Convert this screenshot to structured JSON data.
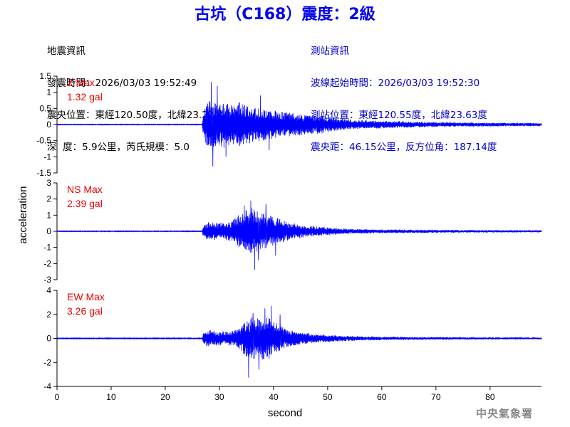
{
  "header": {
    "title": "古坑（C168）震度：2級",
    "left_info": [
      "地震資訊",
      "發震時間：2026/03/03 19:52:49",
      "震央位置：東經120.50度，北緯23.22度",
      "深  度：5.9公里，芮氏規模：5.0"
    ],
    "right_info": [
      "測站資訊",
      "波線起始時間：2026/03/03 19:52:30",
      "測站位置：東經120.55度，北緯23.63度",
      "震央距：46.15公里，反方位角：187.14度"
    ]
  },
  "footer": {
    "agency": "中央氣象署"
  },
  "colors": {
    "trace": "#0000ff",
    "title": "#0000ee",
    "station_info": "#0000cc",
    "max_label": "#ee0000"
  },
  "chart_data": [
    {
      "type": "line",
      "channel": "Z",
      "max_label": "Z Max",
      "max_value": "1.32 gal",
      "peak": 1.32,
      "ylim": [
        -1.5,
        1.5
      ],
      "yticks": [
        1.5,
        1,
        0.5,
        0,
        -0.5,
        -1,
        -1.5
      ],
      "ytick_labels": [
        "1.5",
        "1",
        "0.5",
        "0",
        "-0.5",
        "-1",
        "-1.5"
      ],
      "envelope": [
        [
          0,
          0.01
        ],
        [
          26.8,
          0.01
        ],
        [
          27,
          0.45
        ],
        [
          28,
          0.85
        ],
        [
          29,
          0.8
        ],
        [
          30,
          0.7
        ],
        [
          31,
          0.75
        ],
        [
          32,
          0.65
        ],
        [
          33,
          0.7
        ],
        [
          34,
          0.7
        ],
        [
          35,
          0.6
        ],
        [
          36,
          0.6
        ],
        [
          37,
          0.55
        ],
        [
          38,
          0.55
        ],
        [
          40,
          0.45
        ],
        [
          42,
          0.4
        ],
        [
          45,
          0.35
        ],
        [
          48,
          0.3
        ],
        [
          50,
          0.25
        ],
        [
          55,
          0.15
        ],
        [
          60,
          0.12
        ],
        [
          65,
          0.1
        ],
        [
          70,
          0.08
        ],
        [
          80,
          0.06
        ],
        [
          89.5,
          0.05
        ]
      ],
      "peaks": [
        [
          28.5,
          1.32
        ],
        [
          28.8,
          -1.3
        ],
        [
          29.6,
          1.2
        ],
        [
          31.2,
          -1.0
        ],
        [
          37.6,
          0.9
        ],
        [
          39.2,
          -0.8
        ]
      ]
    },
    {
      "type": "line",
      "channel": "NS",
      "max_label": "NS Max",
      "max_value": "2.39 gal",
      "peak": 2.39,
      "ylim": [
        -3,
        3
      ],
      "yticks": [
        3,
        2,
        1,
        0,
        -1,
        -2,
        -3
      ],
      "ytick_labels": [
        "3",
        "2",
        "1",
        "0",
        "-1",
        "-2",
        "-3"
      ],
      "envelope": [
        [
          0,
          0.02
        ],
        [
          26.8,
          0.02
        ],
        [
          27,
          0.35
        ],
        [
          28,
          0.6
        ],
        [
          30,
          0.55
        ],
        [
          32,
          0.6
        ],
        [
          33,
          0.9
        ],
        [
          34,
          1.1
        ],
        [
          35,
          1.4
        ],
        [
          36,
          1.5
        ],
        [
          37,
          1.3
        ],
        [
          38,
          1.1
        ],
        [
          39,
          1.0
        ],
        [
          40,
          0.9
        ],
        [
          41,
          0.8
        ],
        [
          43,
          0.55
        ],
        [
          45,
          0.4
        ],
        [
          50,
          0.25
        ],
        [
          55,
          0.15
        ],
        [
          60,
          0.12
        ],
        [
          70,
          0.1
        ],
        [
          80,
          0.08
        ],
        [
          89.5,
          0.07
        ]
      ],
      "peaks": [
        [
          36.5,
          -2.39
        ],
        [
          35.8,
          1.9
        ],
        [
          34.6,
          1.6
        ],
        [
          38.6,
          1.7
        ],
        [
          37.2,
          -1.8
        ],
        [
          40.4,
          -1.5
        ]
      ]
    },
    {
      "type": "line",
      "channel": "EW",
      "max_label": "EW Max",
      "max_value": "3.26 gal",
      "peak": 3.26,
      "ylim": [
        -4,
        4
      ],
      "yticks": [
        4,
        2,
        0,
        -2,
        -4
      ],
      "ytick_labels": [
        "4",
        "2",
        "0",
        "-2",
        "-4"
      ],
      "envelope": [
        [
          0,
          0.03
        ],
        [
          26.8,
          0.03
        ],
        [
          27,
          0.5
        ],
        [
          28,
          0.7
        ],
        [
          30,
          0.6
        ],
        [
          32,
          0.6
        ],
        [
          33,
          0.8
        ],
        [
          34,
          1.1
        ],
        [
          35,
          1.6
        ],
        [
          36,
          1.8
        ],
        [
          37,
          1.7
        ],
        [
          38,
          1.9
        ],
        [
          39,
          1.8
        ],
        [
          40,
          1.5
        ],
        [
          41,
          1.1
        ],
        [
          42,
          0.9
        ],
        [
          44,
          0.6
        ],
        [
          46,
          0.45
        ],
        [
          50,
          0.3
        ],
        [
          55,
          0.2
        ],
        [
          60,
          0.15
        ],
        [
          70,
          0.12
        ],
        [
          80,
          0.1
        ],
        [
          89.5,
          0.09
        ]
      ],
      "peaks": [
        [
          35.4,
          -3.26
        ],
        [
          39.6,
          2.7
        ],
        [
          38.4,
          2.5
        ],
        [
          37.3,
          -2.6
        ],
        [
          41.2,
          2.0
        ],
        [
          36.2,
          2.1
        ]
      ]
    }
  ],
  "x_axis": {
    "label": "second",
    "xlim": [
      0,
      89.5
    ],
    "ticks": [
      0,
      10,
      20,
      30,
      40,
      50,
      60,
      70,
      80
    ],
    "tick_labels": [
      "0",
      "10",
      "20",
      "30",
      "40",
      "50",
      "60",
      "70",
      "80"
    ]
  },
  "y_axis": {
    "label": "acceleration"
  }
}
